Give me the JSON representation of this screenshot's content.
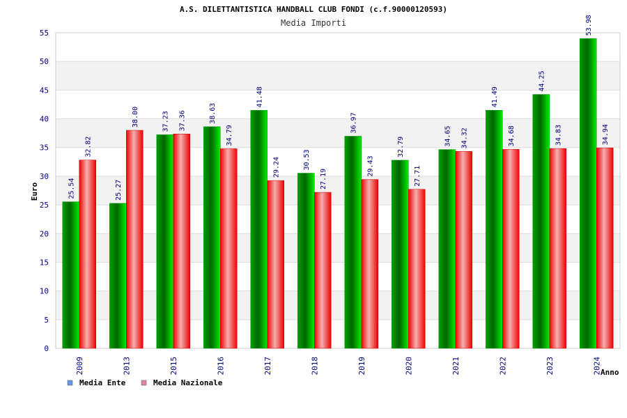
{
  "chart_data": {
    "type": "bar",
    "title": "A.S. DILETTANTISTICA HANDBALL CLUB FONDI (c.f.90000120593)",
    "subtitle": "Media Importi",
    "xlabel": "Anno",
    "ylabel": "Euro",
    "ylim": [
      0,
      55
    ],
    "yticks": [
      0,
      5,
      10,
      15,
      20,
      25,
      30,
      35,
      40,
      45,
      50,
      55
    ],
    "categories": [
      "2009",
      "2013",
      "2015",
      "2016",
      "2017",
      "2018",
      "2019",
      "2020",
      "2021",
      "2022",
      "2023",
      "2024"
    ],
    "series": [
      {
        "name": "Media Ente",
        "color": "#00c000",
        "legend_color": "#6699ee",
        "values": [
          25.54,
          25.27,
          37.23,
          38.63,
          41.48,
          30.53,
          36.97,
          32.79,
          34.65,
          41.49,
          44.25,
          53.98
        ],
        "labels": [
          "25.54",
          "25.27",
          "37.23",
          "38.63",
          "41.48",
          "30.53",
          "36.97",
          "32.79",
          "34.65",
          "41.49",
          "44.25",
          "53.98"
        ]
      },
      {
        "name": "Media Nazionale",
        "color": "#ee0000",
        "legend_color": "#dd88aa",
        "values": [
          32.82,
          38.0,
          37.36,
          34.79,
          29.24,
          27.19,
          29.43,
          27.71,
          34.32,
          34.68,
          34.83,
          34.94
        ],
        "labels": [
          "32.82",
          "38.00",
          "37.36",
          "34.79",
          "29.24",
          "27.19",
          "29.43",
          "27.71",
          "34.32",
          "34.68",
          "34.83",
          "34.94"
        ]
      }
    ],
    "grid": true,
    "legend_position": "bottom-left"
  }
}
